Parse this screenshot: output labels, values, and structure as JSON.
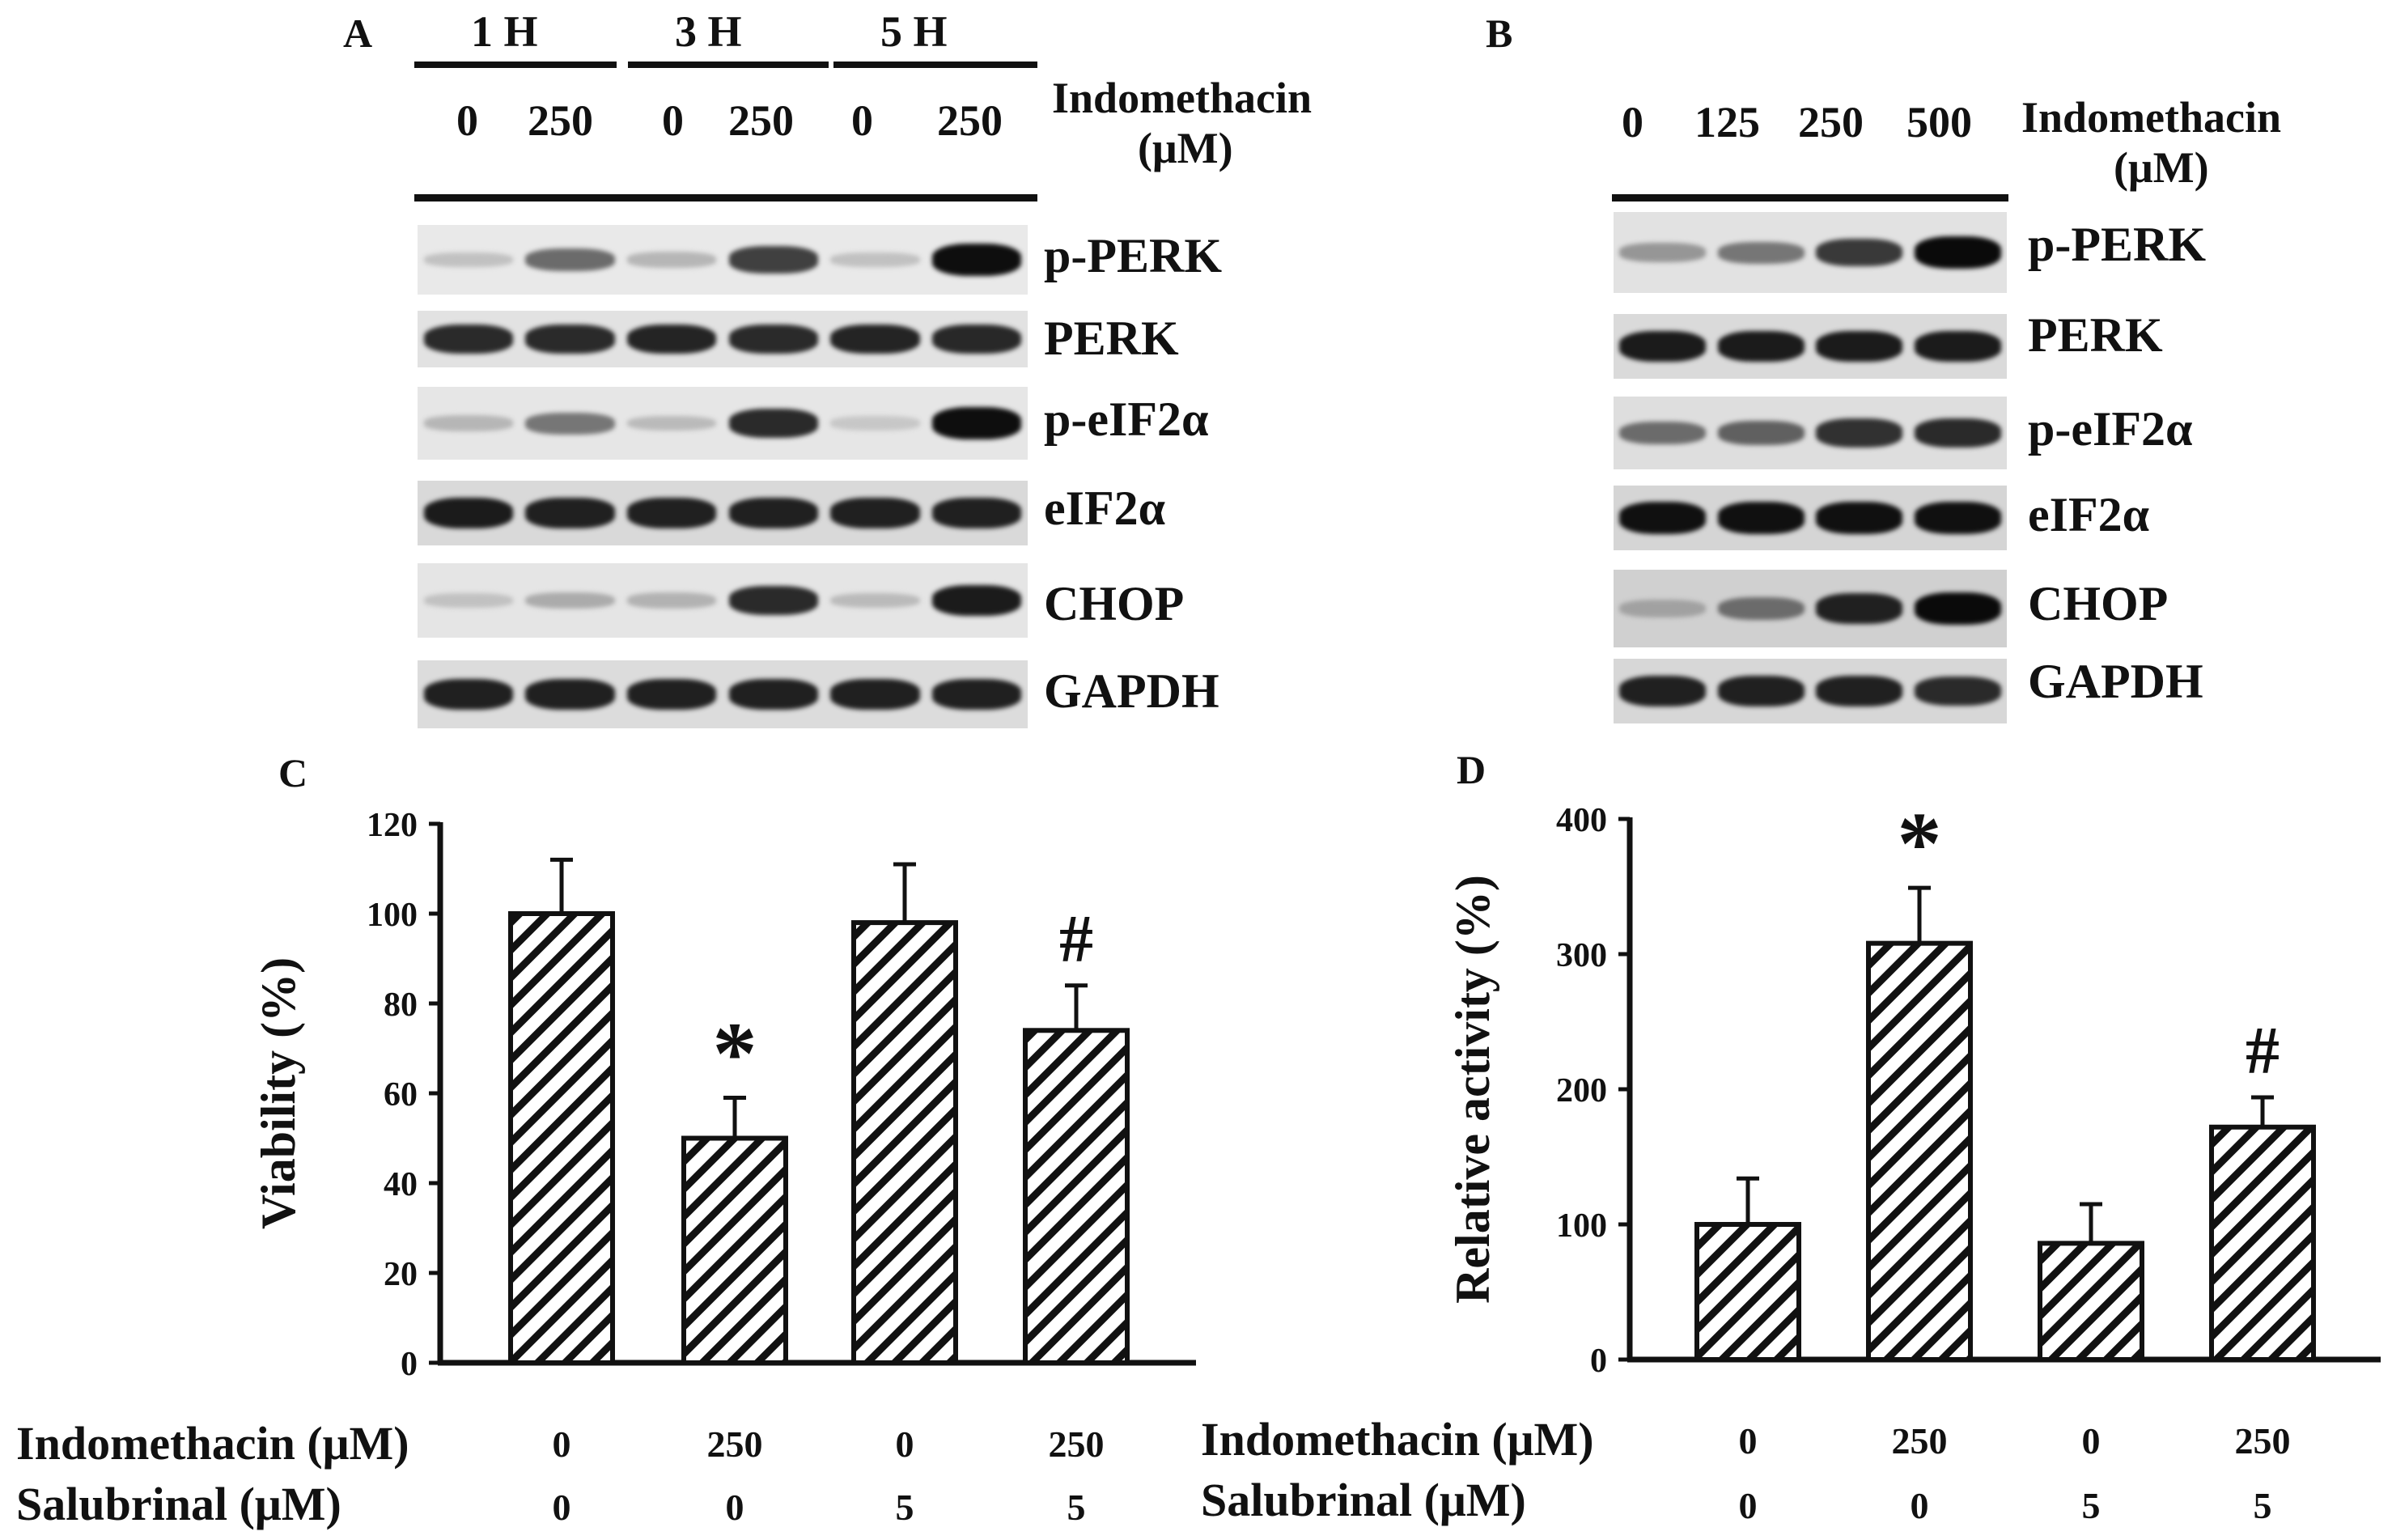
{
  "panel_a": {
    "letter": "A",
    "timepoints": [
      "1 H",
      "3 H",
      "5 H"
    ],
    "doses": [
      "0",
      "250",
      "0",
      "250",
      "0",
      "250"
    ],
    "treatment_label": "Indomethacin",
    "unit_label": "(μM)",
    "bands": [
      {
        "label": "p-PERK",
        "intensities": [
          0.15,
          0.55,
          0.2,
          0.75,
          0.15,
          0.98
        ]
      },
      {
        "label": "PERK",
        "intensities": [
          0.85,
          0.85,
          0.88,
          0.85,
          0.88,
          0.86
        ]
      },
      {
        "label": "p-eIF2α",
        "intensities": [
          0.2,
          0.5,
          0.18,
          0.85,
          0.12,
          0.98
        ]
      },
      {
        "label": "eIF2α",
        "intensities": [
          0.92,
          0.9,
          0.9,
          0.9,
          0.9,
          0.9
        ]
      },
      {
        "label": "CHOP",
        "intensities": [
          0.15,
          0.25,
          0.22,
          0.85,
          0.18,
          0.92
        ]
      },
      {
        "label": "GAPDH",
        "intensities": [
          0.9,
          0.9,
          0.9,
          0.9,
          0.9,
          0.9
        ]
      }
    ]
  },
  "panel_b": {
    "letter": "B",
    "doses": [
      "0",
      "125",
      "250",
      "500"
    ],
    "treatment_label": "Indomethacin",
    "unit_label": "(μM)",
    "bands": [
      {
        "label": "p-PERK",
        "intensities": [
          0.35,
          0.5,
          0.78,
          1.0
        ]
      },
      {
        "label": "PERK",
        "intensities": [
          0.92,
          0.92,
          0.92,
          0.92
        ]
      },
      {
        "label": "p-eIF2α",
        "intensities": [
          0.55,
          0.6,
          0.82,
          0.85
        ]
      },
      {
        "label": "eIF2α",
        "intensities": [
          0.97,
          0.97,
          0.97,
          0.97
        ]
      },
      {
        "label": "CHOP",
        "intensities": [
          0.3,
          0.55,
          0.9,
          1.0
        ]
      },
      {
        "label": "GAPDH",
        "intensities": [
          0.9,
          0.9,
          0.9,
          0.85
        ]
      }
    ]
  },
  "chart_data": [
    {
      "letter": "C",
      "type": "bar",
      "ylabel": "Viability (%)",
      "ylim": [
        0,
        120
      ],
      "yticks": [
        0,
        20,
        40,
        60,
        80,
        100,
        120
      ],
      "values": [
        100,
        50,
        98,
        74
      ],
      "errors": [
        12,
        9,
        13,
        10
      ],
      "annotations": [
        "",
        "*",
        "",
        "#"
      ],
      "row_labels": [
        "Indomethacin (μM)",
        "Salubrinal (μM)"
      ],
      "indomethacin": [
        "0",
        "250",
        "0",
        "250"
      ],
      "salubrinal": [
        "0",
        "0",
        "5",
        "5"
      ]
    },
    {
      "letter": "D",
      "type": "bar",
      "ylabel": "Relative activity (%)",
      "ylim": [
        0,
        400
      ],
      "yticks": [
        0,
        100,
        200,
        300,
        400
      ],
      "values": [
        100,
        308,
        86,
        172
      ],
      "errors": [
        34,
        41,
        29,
        22
      ],
      "annotations": [
        "",
        "*",
        "",
        "#"
      ],
      "row_labels": [
        "Indomethacin (μM)",
        "Salubrinal (μM)"
      ],
      "indomethacin": [
        "0",
        "250",
        "0",
        "250"
      ],
      "salubrinal": [
        "0",
        "0",
        "5",
        "5"
      ]
    }
  ]
}
